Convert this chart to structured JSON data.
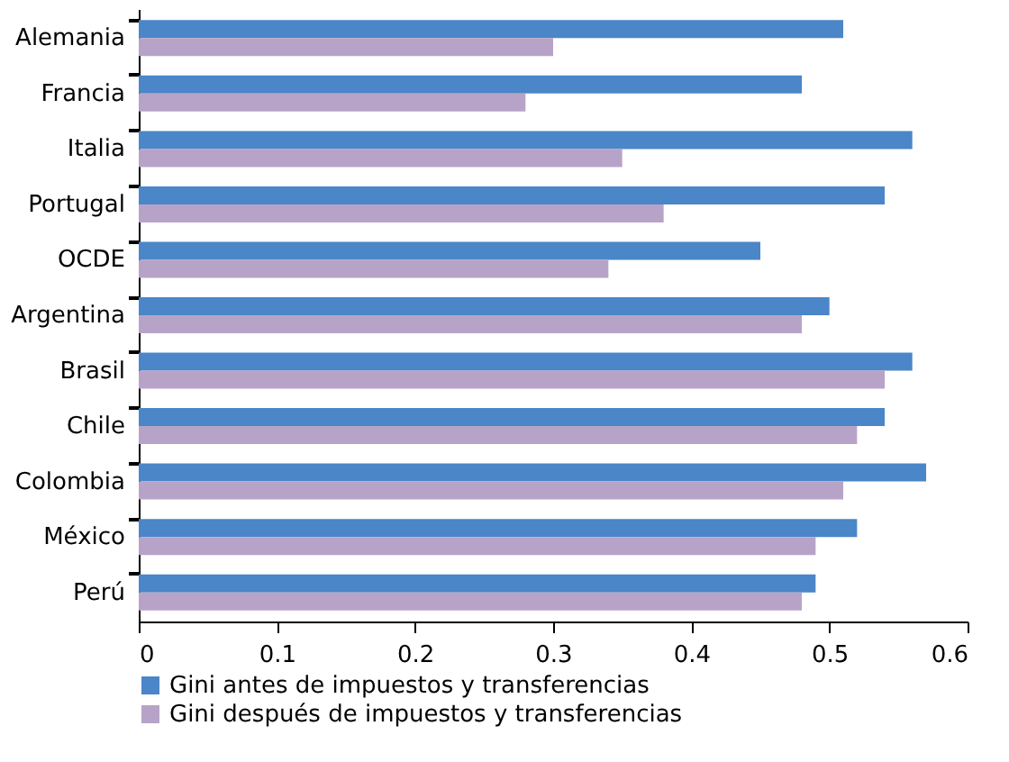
{
  "chart_data": {
    "type": "bar",
    "orientation": "horizontal",
    "categories": [
      "Alemania",
      "Francia",
      "Italia",
      "Portugal",
      "OCDE",
      "Argentina",
      "Brasil",
      "Chile",
      "Colombia",
      "México",
      "Perú"
    ],
    "series": [
      {
        "name": "Gini antes de impuestos y transferencias",
        "color": "#4a86c8",
        "values": [
          0.51,
          0.48,
          0.56,
          0.54,
          0.45,
          0.5,
          0.56,
          0.54,
          0.57,
          0.52,
          0.49
        ]
      },
      {
        "name": "Gini después de impuestos y transferencias",
        "color": "#b8a3c8",
        "values": [
          0.3,
          0.28,
          0.35,
          0.38,
          0.34,
          0.48,
          0.54,
          0.52,
          0.51,
          0.49,
          0.48
        ]
      }
    ],
    "xlim": [
      0,
      0.6
    ],
    "xticks": [
      0,
      0.1,
      0.2,
      0.3,
      0.4,
      0.5,
      0.6
    ],
    "grid": false,
    "legend": "bottom"
  }
}
